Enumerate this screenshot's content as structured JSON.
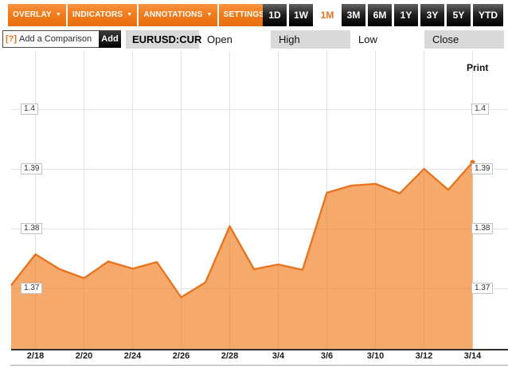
{
  "toolbar": {
    "menus": [
      "OVERLAY",
      "INDICATORS",
      "ANNOTATIONS",
      "SETTINGS"
    ],
    "dropdown_arrow": "▼",
    "periods": [
      "1D",
      "1W",
      "1M",
      "3M",
      "6M",
      "1Y",
      "3Y",
      "5Y",
      "YTD"
    ],
    "active_period": "1M"
  },
  "comparison": {
    "help_icon": "[?]",
    "placeholder": "Add a Comparison",
    "add_label": "Add"
  },
  "quote": {
    "symbol": "EURUSD:CUR",
    "fields": [
      "Open",
      "High",
      "Low",
      "Close"
    ]
  },
  "print_label": "Print",
  "colors": {
    "accent_orange": "#e8731e",
    "button_orange": "#f07c1e",
    "button_black": "#000000",
    "fill_orange": "#f07c1e",
    "grid": "#e2e2e2",
    "axis": "#2f2f2f",
    "label_box_border": "#c2c2c2",
    "field_gray": "#d9d9d9"
  },
  "chart_data": {
    "type": "area",
    "title": "EURUSD:CUR 1M",
    "xlabel": "",
    "ylabel": "",
    "x": [
      "2/17",
      "2/18",
      "2/19",
      "2/20",
      "2/21",
      "2/24",
      "2/25",
      "2/26",
      "2/27",
      "2/28",
      "3/3",
      "3/4",
      "3/5",
      "3/6",
      "3/7",
      "3/10",
      "3/11",
      "3/12",
      "3/13",
      "3/14"
    ],
    "values": [
      1.3705,
      1.3757,
      1.3732,
      1.3717,
      1.3745,
      1.3733,
      1.3744,
      1.3685,
      1.371,
      1.3804,
      1.3732,
      1.374,
      1.3731,
      1.386,
      1.3872,
      1.3875,
      1.3859,
      1.39,
      1.3865,
      1.3911
    ],
    "x_ticks": [
      "2/18",
      "2/20",
      "2/24",
      "2/26",
      "2/28",
      "3/4",
      "3/6",
      "3/10",
      "3/12",
      "3/14"
    ],
    "y_ticks": [
      "1.37",
      "1.38",
      "1.39",
      "1.4"
    ],
    "ylim": [
      1.3597,
      1.4097
    ],
    "grid": true,
    "legend": "none",
    "last_point_marker": true
  }
}
